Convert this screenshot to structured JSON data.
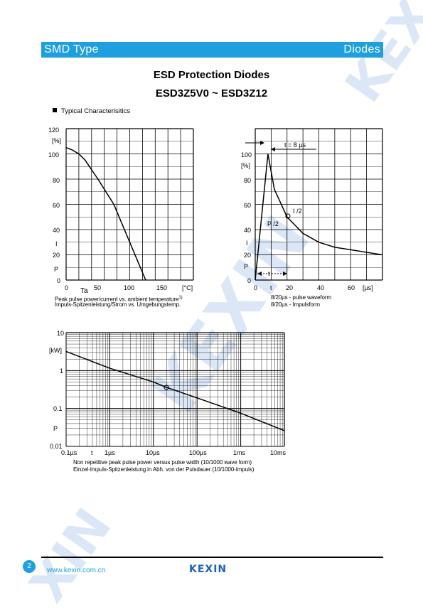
{
  "header": {
    "left": "SMD Type",
    "right": "Diodes"
  },
  "title": "ESD Protection Diodes",
  "subtitle": "ESD3Z5V0 ~ ESD3Z12",
  "section_title": "Typical  Characterisitics",
  "chart1": {
    "y_ticks": [
      "120",
      "100",
      "80",
      "60",
      "40",
      "20",
      "0"
    ],
    "y_unit": "[%]",
    "x_ticks": [
      "0",
      "50",
      "100",
      "150",
      "[°C]"
    ],
    "x_var": "Ta",
    "series_labels": [
      "I",
      "P"
    ],
    "caption1": "Peak pulse power/current vs. ambient temperature",
    "caption2": "Impuls-Spitzenleistung/Strom vs. Umgebungstemp.",
    "footnote_mark": "1)",
    "chart_data": {
      "type": "line",
      "x": [
        0,
        10,
        20,
        30,
        50,
        75,
        100,
        125
      ],
      "y": [
        105,
        103,
        100,
        95,
        80,
        60,
        30,
        0
      ],
      "xlim": [
        0,
        200
      ],
      "ylim": [
        0,
        120
      ]
    }
  },
  "chart2": {
    "y_ticks": [
      "100",
      "80",
      "60",
      "40",
      "20",
      "0"
    ],
    "y_unit": "[%]",
    "x_ticks": [
      "0",
      "t",
      "20",
      "40",
      "60",
      "[µs]"
    ],
    "tr_label": "t  = 8 µs",
    "tp_label": "t",
    "ipp_half": "I    /2",
    "ppp_half": "P    /2",
    "series_labels": [
      "I",
      "P"
    ],
    "caption1": "8/20µs - pulse waveform",
    "caption2": "8/20µs - Impulsform",
    "chart_data": {
      "type": "line",
      "x": [
        0,
        8,
        12,
        20,
        30,
        40,
        50,
        60,
        80
      ],
      "y": [
        0,
        100,
        72,
        50,
        37,
        30,
        26,
        24,
        20
      ],
      "xlim": [
        0,
        80
      ],
      "ylim": [
        0,
        120
      ]
    }
  },
  "chart3": {
    "y_ticks": [
      "10",
      "1",
      "0.1",
      "0.01"
    ],
    "y_unit": "[kW]",
    "x_ticks": [
      "0.1µs",
      "1µs",
      "10µs",
      "100µs",
      "1ms",
      "10ms"
    ],
    "tp_axis": "t",
    "ppp_label": "P",
    "caption1": "Non repetitive peak pulse power  versus pulse width (10/1000 wave form)",
    "caption2": "Einzel-Impuls-Spitzenleistung in Abh. von der Pulsdauer  (10/1000-Impuls)",
    "chart_data": {
      "type": "line",
      "x": [
        0.1,
        1,
        10,
        20,
        100,
        1000,
        10000
      ],
      "y": [
        3.2,
        1.15,
        0.5,
        0.36,
        0.19,
        0.075,
        0.026
      ],
      "xlim": [
        0.1,
        10000
      ],
      "ylim": [
        0.01,
        10
      ],
      "xscale": "log",
      "yscale": "log"
    }
  },
  "footer": {
    "page": "2",
    "website": "www.kexin.com.cn",
    "logo": "KEXIN"
  }
}
